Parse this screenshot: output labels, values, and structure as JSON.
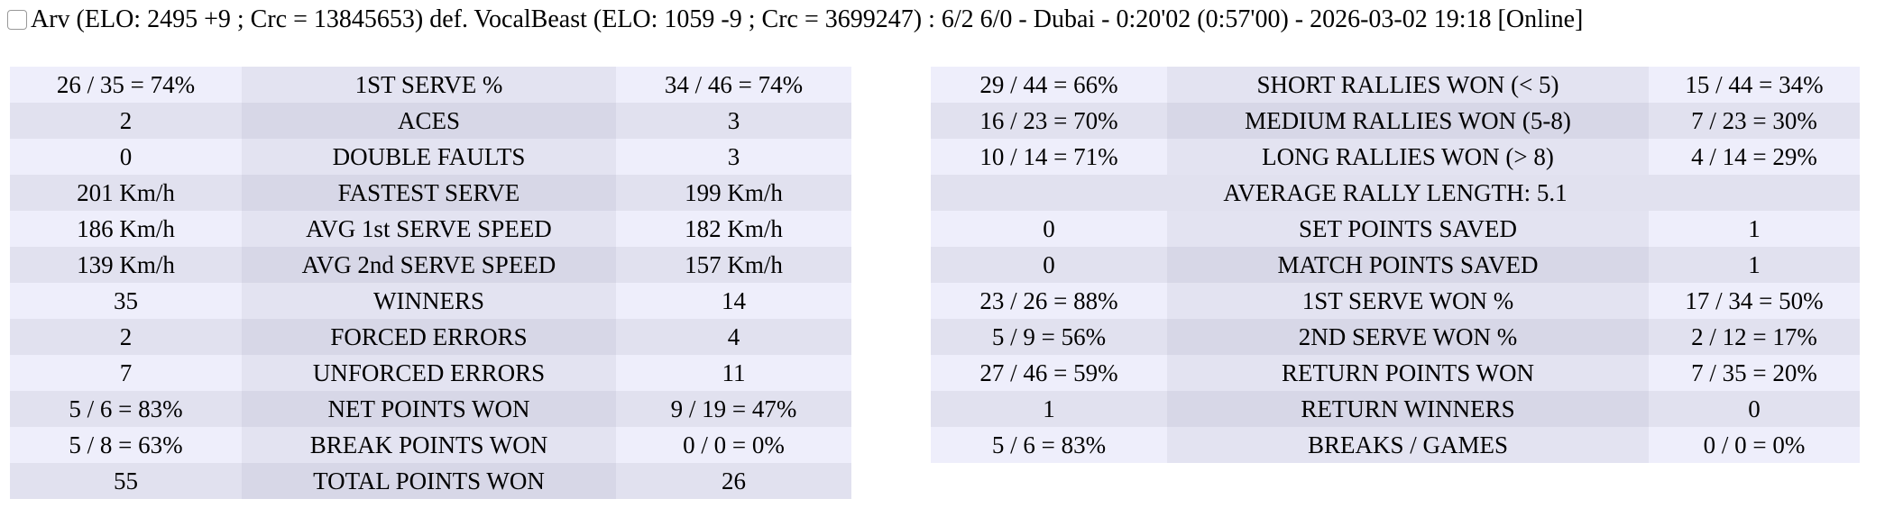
{
  "header": {
    "text": "Arv (ELO: 2495 +9 ; Crc = 13845653) def. VocalBeast (ELO: 1059 -9 ; Crc = 3699247) : 6/2 6/0 - Dubai - 0:20'02 (0:57'00) - 2026-03-02 19:18 [Online]"
  },
  "left_table": {
    "rows": [
      [
        "26 / 35 = 74%",
        "1ST SERVE %",
        "34 / 46 = 74%"
      ],
      [
        "2",
        "ACES",
        "3"
      ],
      [
        "0",
        "DOUBLE FAULTS",
        "3"
      ],
      [
        "201 Km/h",
        "FASTEST SERVE",
        "199 Km/h"
      ],
      [
        "186 Km/h",
        "AVG 1st SERVE SPEED",
        "182 Km/h"
      ],
      [
        "139 Km/h",
        "AVG 2nd SERVE SPEED",
        "157 Km/h"
      ],
      [
        "35",
        "WINNERS",
        "14"
      ],
      [
        "2",
        "FORCED ERRORS",
        "4"
      ],
      [
        "7",
        "UNFORCED ERRORS",
        "11"
      ],
      [
        "5 / 6 = 83%",
        "NET POINTS WON",
        "9 / 19 = 47%"
      ],
      [
        "5 / 8 = 63%",
        "BREAK POINTS WON",
        "0 / 0 = 0%"
      ],
      [
        "55",
        "TOTAL POINTS WON",
        "26"
      ]
    ]
  },
  "right_table": {
    "rows": [
      [
        "29 / 44 = 66%",
        "SHORT RALLIES WON (< 5)",
        "15 / 44 = 34%"
      ],
      [
        "16 / 23 = 70%",
        "MEDIUM RALLIES WON (5-8)",
        "7 / 23 = 30%"
      ],
      [
        "10 / 14 = 71%",
        "LONG RALLIES WON (> 8)",
        "4 / 14 = 29%"
      ],
      [
        "AVERAGE RALLY LENGTH: 5.1"
      ],
      [
        "0",
        "SET POINTS SAVED",
        "1"
      ],
      [
        "0",
        "MATCH POINTS SAVED",
        "1"
      ],
      [
        "23 / 26 = 88%",
        "1ST SERVE WON %",
        "17 / 34 = 50%"
      ],
      [
        "5 / 9 = 56%",
        "2ND SERVE WON %",
        "2 / 12 = 17%"
      ],
      [
        "27 / 46 = 59%",
        "RETURN POINTS WON",
        "7 / 35 = 20%"
      ],
      [
        "1",
        "RETURN WINNERS",
        "0"
      ],
      [
        "5 / 6 = 83%",
        "BREAKS / GAMES",
        "0 / 0 = 0%"
      ]
    ]
  }
}
